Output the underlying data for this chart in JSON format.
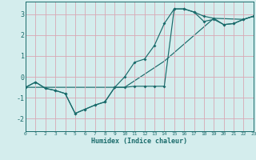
{
  "xlabel": "Humidex (Indice chaleur)",
  "bg_color": "#d4eded",
  "grid_color": "#d8a8b4",
  "line_color": "#1a6b6b",
  "xlim": [
    0,
    23
  ],
  "ylim": [
    -2.6,
    3.6
  ],
  "yticks": [
    -2,
    -1,
    0,
    1,
    2,
    3
  ],
  "xticks": [
    0,
    1,
    2,
    3,
    4,
    5,
    6,
    7,
    8,
    9,
    10,
    11,
    12,
    13,
    14,
    15,
    16,
    17,
    18,
    19,
    20,
    21,
    22,
    23
  ],
  "line1_x": [
    0,
    1,
    2,
    3,
    4,
    5,
    6,
    7,
    8,
    9,
    10,
    11,
    12,
    13,
    14,
    15,
    16,
    17,
    18,
    19,
    20,
    21,
    22,
    23
  ],
  "line1_y": [
    -0.5,
    -0.25,
    -0.55,
    -0.65,
    -0.8,
    -1.75,
    -1.55,
    -1.35,
    -1.2,
    -0.5,
    -0.5,
    -0.45,
    -0.45,
    -0.45,
    -0.45,
    3.25,
    3.25,
    3.1,
    2.9,
    2.8,
    2.5,
    2.55,
    2.75,
    2.9
  ],
  "line2_x": [
    0,
    1,
    2,
    3,
    4,
    5,
    6,
    7,
    8,
    9,
    10,
    11,
    12,
    13,
    14,
    15,
    16,
    17,
    18,
    19,
    20,
    21,
    22,
    23
  ],
  "line2_y": [
    -0.5,
    -0.25,
    -0.55,
    -0.65,
    -0.8,
    -1.75,
    -1.55,
    -1.35,
    -1.2,
    -0.5,
    0.0,
    0.7,
    0.85,
    1.5,
    2.55,
    3.25,
    3.25,
    3.1,
    2.65,
    2.75,
    2.5,
    2.55,
    2.75,
    2.9
  ],
  "line3_x": [
    0,
    10,
    14,
    19,
    22,
    23
  ],
  "line3_y": [
    -0.5,
    -0.5,
    0.75,
    2.8,
    2.75,
    2.9
  ]
}
